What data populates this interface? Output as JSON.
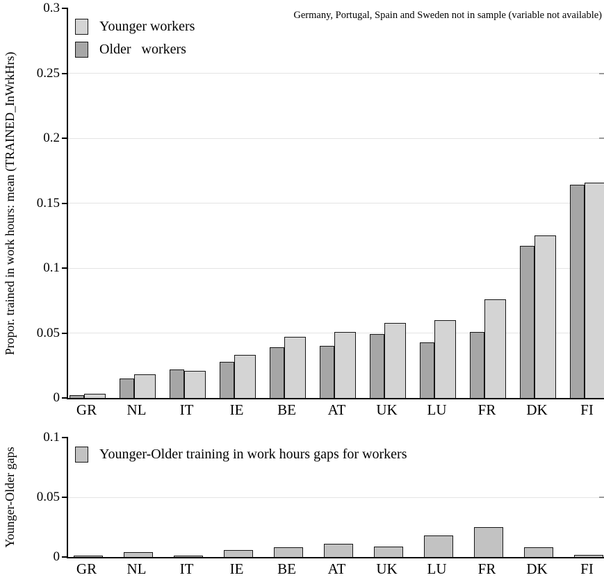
{
  "figure": {
    "note": "Germany, Portugal, Spain and Sweden not in sample (variable not available)"
  },
  "colors": {
    "younger_fill": "#d4d4d4",
    "older_fill": "#a6a6a6",
    "gap_fill": "#c2c2c2",
    "grid_line": "#e4e4e4",
    "axis": "#000000",
    "bar_border": "#161616",
    "right_tick": "#999999",
    "text": "#000000",
    "background": "#ffffff"
  },
  "chart_data": [
    {
      "type": "bar",
      "panel": "top",
      "categories": [
        "GR",
        "NL",
        "IT",
        "IE",
        "BE",
        "AT",
        "UK",
        "LU",
        "FR",
        "DK",
        "FI"
      ],
      "series": [
        {
          "name": "Younger workers",
          "color": "#d4d4d4",
          "values": [
            0.003,
            0.018,
            0.021,
            0.033,
            0.047,
            0.051,
            0.058,
            0.06,
            0.076,
            0.125,
            0.166
          ]
        },
        {
          "name": "Older   workers",
          "color": "#a6a6a6",
          "values": [
            0.002,
            0.015,
            0.022,
            0.028,
            0.039,
            0.04,
            0.049,
            0.043,
            0.051,
            0.117,
            0.164
          ]
        }
      ],
      "ylabel": "Propor. trained in work hours: mean (TRAINED_InWrkHrs)",
      "xlabel": "",
      "ylim": [
        0,
        0.3
      ],
      "yticks": [
        0,
        0.05,
        0.1,
        0.15,
        0.2,
        0.25,
        0.3
      ],
      "ytick_labels": [
        "0",
        "0.05",
        "0.1",
        "0.15",
        "0.2",
        "0.25",
        "0.3"
      ],
      "grid": true,
      "legend_position": "top-left",
      "annotation": "Germany, Portugal, Spain and Sweden not in sample (variable not available)"
    },
    {
      "type": "bar",
      "panel": "bottom",
      "categories": [
        "GR",
        "NL",
        "IT",
        "IE",
        "BE",
        "AT",
        "UK",
        "LU",
        "FR",
        "DK",
        "FI"
      ],
      "series": [
        {
          "name": "Younger-Older training in work hours gaps for workers",
          "color": "#c2c2c2",
          "values": [
            0.001,
            0.004,
            0.0005,
            0.006,
            0.008,
            0.011,
            0.009,
            0.018,
            0.025,
            0.008,
            0.002
          ]
        }
      ],
      "ylabel": "Younger-Older gaps",
      "xlabel": "",
      "ylim": [
        0,
        0.1
      ],
      "yticks": [
        0,
        0.05,
        0.1
      ],
      "ytick_labels": [
        "0",
        "0.05",
        "0.1"
      ],
      "grid": true,
      "legend_position": "top-left"
    }
  ]
}
